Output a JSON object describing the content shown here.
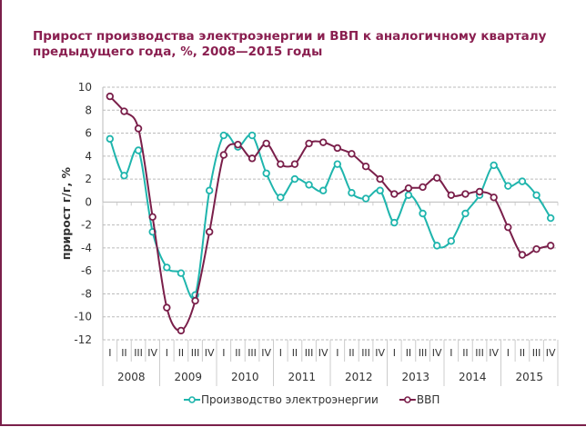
{
  "chart_data": {
    "type": "line",
    "title": "Прирост производства электроэнергии и ВВП к аналогичному кварталу предыдущего года, %, 2008—2015 годы",
    "title_lines": [
      "Прирост производства электроэнергии и ВВП к аналогичному кварталу",
      "предыдущего года, %, 2008—2015 годы"
    ],
    "ylabel": "прирост г/г, %",
    "xlabel": "",
    "ylim": [
      -12,
      10
    ],
    "yticks": [
      10,
      8,
      6,
      4,
      2,
      0,
      -2,
      -4,
      -6,
      -8,
      -10,
      -12
    ],
    "grid": true,
    "legend_position": "bottom",
    "years": [
      "2008",
      "2009",
      "2010",
      "2011",
      "2012",
      "2013",
      "2014",
      "2015"
    ],
    "quarters": [
      "I",
      "II",
      "III",
      "IV"
    ],
    "series": [
      {
        "name": "Производство электроэнергии",
        "color": "#1fb5ad",
        "values": [
          5.5,
          2.3,
          4.5,
          -2.6,
          -5.7,
          -6.2,
          -8.1,
          1.0,
          5.8,
          4.8,
          5.8,
          2.5,
          0.4,
          2.0,
          1.5,
          1.0,
          3.3,
          0.8,
          0.3,
          1.0,
          -1.8,
          0.6,
          -1.0,
          -3.8,
          -3.4,
          -1.0,
          0.6,
          3.2,
          1.4,
          1.8,
          0.6,
          -1.4
        ]
      },
      {
        "name": "ВВП",
        "color": "#7a1f4a",
        "values": [
          9.2,
          7.9,
          6.4,
          -1.3,
          -9.2,
          -11.2,
          -8.6,
          -2.6,
          4.1,
          5.0,
          3.8,
          5.1,
          3.3,
          3.3,
          5.1,
          5.2,
          4.7,
          4.2,
          3.1,
          2.0,
          0.7,
          1.2,
          1.3,
          2.1,
          0.6,
          0.7,
          0.9,
          0.4,
          -2.2,
          -4.6,
          -4.1,
          -3.8
        ]
      }
    ]
  }
}
